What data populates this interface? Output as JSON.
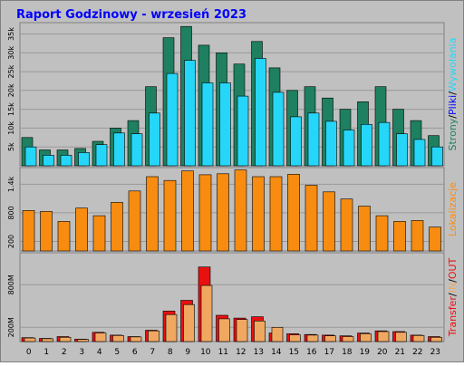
{
  "title": "Raport Godzinowy -  wrzesień 2023",
  "colors": {
    "background": "#c0c0c0",
    "title": "#0000ff",
    "grid": "#999999",
    "strony": "#1e8060",
    "pliki": "#26d6f8",
    "wywolania": "#26d6f8",
    "lokalizacje": "#f88c10",
    "transfer": "#e81010",
    "in": "#f0a860",
    "out": "#e81010"
  },
  "chart_data": [
    {
      "type": "bar",
      "name": "hits-pages",
      "categories": [
        "0",
        "1",
        "2",
        "3",
        "4",
        "5",
        "6",
        "7",
        "8",
        "9",
        "10",
        "11",
        "12",
        "13",
        "14",
        "15",
        "16",
        "17",
        "18",
        "19",
        "20",
        "21",
        "22",
        "23"
      ],
      "ylim": [
        0,
        38000
      ],
      "yticks": [
        "5k",
        "10k",
        "15k",
        "20k",
        "25k",
        "30k",
        "35k"
      ],
      "ytick_values": [
        5000,
        10000,
        15000,
        20000,
        25000,
        30000,
        35000
      ],
      "ylabel_parts": [
        "Strony",
        "/",
        "Pliki",
        "/",
        "Wywołania"
      ],
      "series": [
        {
          "name": "Strony",
          "values": [
            7500,
            4200,
            4200,
            4600,
            6500,
            10000,
            12000,
            21000,
            34000,
            37000,
            32000,
            30000,
            27000,
            33000,
            26000,
            20000,
            21000,
            18000,
            15000,
            17000,
            21000,
            15000,
            12000,
            8000
          ]
        },
        {
          "name": "Pliki",
          "values": [
            5000,
            2800,
            2800,
            3500,
            5600,
            8700,
            8500,
            14000,
            24500,
            28000,
            22000,
            22000,
            18500,
            28500,
            19500,
            13000,
            14000,
            11800,
            9500,
            11000,
            11500,
            8500,
            7000,
            5000
          ]
        }
      ]
    },
    {
      "type": "bar",
      "name": "locations",
      "categories": [
        "0",
        "1",
        "2",
        "3",
        "4",
        "5",
        "6",
        "7",
        "8",
        "9",
        "10",
        "11",
        "12",
        "13",
        "14",
        "15",
        "16",
        "17",
        "18",
        "19",
        "20",
        "21",
        "22",
        "23"
      ],
      "ylim": [
        0,
        1750
      ],
      "yticks": [
        "200",
        "800",
        "1.4k"
      ],
      "ytick_values": [
        200,
        800,
        1400
      ],
      "ylabel_parts": [
        "Lokalizacje"
      ],
      "series": [
        {
          "name": "Lokalizacje",
          "values": [
            850,
            830,
            620,
            900,
            740,
            1020,
            1260,
            1560,
            1480,
            1680,
            1600,
            1620,
            1700,
            1560,
            1560,
            1610,
            1380,
            1240,
            1090,
            940,
            740,
            620,
            640,
            500
          ]
        }
      ]
    },
    {
      "type": "bar",
      "name": "transfer",
      "categories": [
        "0",
        "1",
        "2",
        "3",
        "4",
        "5",
        "6",
        "7",
        "8",
        "9",
        "10",
        "11",
        "12",
        "13",
        "14",
        "15",
        "16",
        "17",
        "18",
        "19",
        "20",
        "21",
        "22",
        "23"
      ],
      "ylim": [
        0,
        1250
      ],
      "yticks": [
        "200M",
        "800M"
      ],
      "ytick_values": [
        200,
        800
      ],
      "ylabel_parts": [
        "Transfer",
        "/",
        "IN",
        "/",
        "OUT"
      ],
      "series": [
        {
          "name": "Transfer",
          "values": [
            55,
            45,
            70,
            35,
            130,
            90,
            70,
            160,
            430,
            580,
            1050,
            370,
            330,
            350,
            120,
            110,
            100,
            90,
            80,
            120,
            150,
            140,
            90,
            70
          ]
        },
        {
          "name": "IN",
          "values": [
            50,
            40,
            60,
            30,
            120,
            85,
            65,
            150,
            380,
            520,
            790,
            320,
            310,
            290,
            200,
            95,
            90,
            80,
            70,
            110,
            140,
            130,
            85,
            60
          ]
        }
      ]
    }
  ]
}
